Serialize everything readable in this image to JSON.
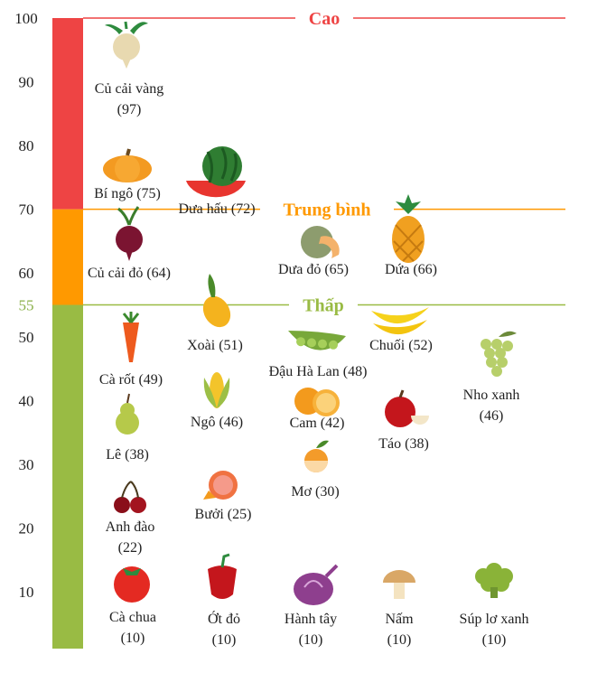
{
  "chart_data": {
    "type": "scatter",
    "title": "",
    "xlabel": "",
    "ylabel": "",
    "ylim": [
      0,
      100
    ],
    "y_ticks": [
      "100",
      "90",
      "80",
      "70",
      "60",
      "55",
      "50",
      "40",
      "30",
      "20",
      "10"
    ],
    "bands": [
      {
        "name": "Cao",
        "from": 70,
        "to": 100,
        "color": "#ee4444"
      },
      {
        "name": "Trung bình",
        "from": 55,
        "to": 70,
        "color": "#ff9900"
      },
      {
        "name": "Thấp",
        "from": 0,
        "to": 55,
        "color": "#99bb44"
      }
    ],
    "points": [
      {
        "label": [
          "Củ cải vàng",
          "(97)"
        ],
        "value": 97,
        "icon": "turnip-icon"
      },
      {
        "label": [
          "Bí ngô (75)"
        ],
        "value": 75,
        "icon": "pumpkin-icon"
      },
      {
        "label": [
          "Dưa hấu (72)"
        ],
        "value": 72,
        "icon": "watermelon-icon"
      },
      {
        "label": [
          "Củ cải đỏ (64)"
        ],
        "value": 64,
        "icon": "beet-icon"
      },
      {
        "label": [
          "Dưa đỏ (65)"
        ],
        "value": 65,
        "icon": "cantaloupe-icon"
      },
      {
        "label": [
          "Dứa (66)"
        ],
        "value": 66,
        "icon": "pineapple-icon"
      },
      {
        "label": [
          "Xoài (51)"
        ],
        "value": 51,
        "icon": "mango-icon"
      },
      {
        "label": [
          "Chuối (52)"
        ],
        "value": 52,
        "icon": "banana-icon"
      },
      {
        "label": [
          "Cà rốt (49)"
        ],
        "value": 49,
        "icon": "carrot-icon"
      },
      {
        "label": [
          "Đậu Hà Lan (48)"
        ],
        "value": 48,
        "icon": "peas-icon"
      },
      {
        "label": [
          "Nho xanh",
          "(46)"
        ],
        "value": 46,
        "icon": "green-grapes-icon"
      },
      {
        "label": [
          "Ngô (46)"
        ],
        "value": 46,
        "icon": "corn-icon"
      },
      {
        "label": [
          "Cam (42)"
        ],
        "value": 42,
        "icon": "orange-icon"
      },
      {
        "label": [
          "Táo (38)"
        ],
        "value": 38,
        "icon": "apple-icon"
      },
      {
        "label": [
          "Lê (38)"
        ],
        "value": 38,
        "icon": "pear-icon"
      },
      {
        "label": [
          "Mơ (30)"
        ],
        "value": 30,
        "icon": "apricot-icon"
      },
      {
        "label": [
          "Bưởi (25)"
        ],
        "value": 25,
        "icon": "grapefruit-icon"
      },
      {
        "label": [
          "Anh đào",
          "(22)"
        ],
        "value": 22,
        "icon": "cherry-icon"
      },
      {
        "label": [
          "Cà chua",
          "(10)"
        ],
        "value": 10,
        "icon": "tomato-icon"
      },
      {
        "label": [
          "Ớt đỏ",
          "(10)"
        ],
        "value": 10,
        "icon": "red-pepper-icon"
      },
      {
        "label": [
          "Hành tây",
          "(10)"
        ],
        "value": 10,
        "icon": "onion-icon"
      },
      {
        "label": [
          "Nấm",
          "(10)"
        ],
        "value": 10,
        "icon": "mushroom-icon"
      },
      {
        "label": [
          "Súp lơ xanh",
          "(10)"
        ],
        "value": 10,
        "icon": "broccoli-icon"
      }
    ]
  }
}
